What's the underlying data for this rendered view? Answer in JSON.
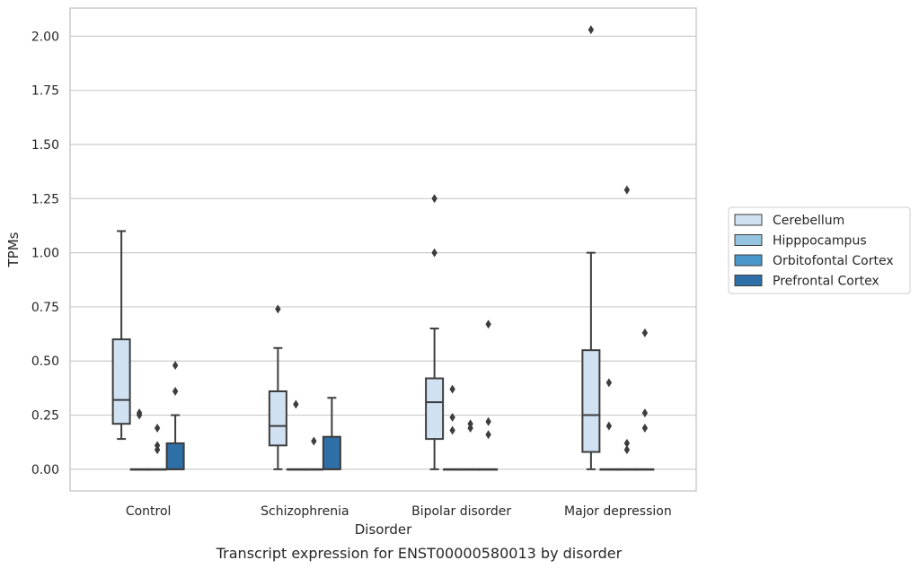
{
  "chart_data": {
    "type": "boxplot",
    "title": "",
    "caption": "Transcript expression for ENST00000580013 by disorder",
    "xlabel": "Disorder",
    "ylabel": "TPMs",
    "ylim": [
      -0.1,
      2.13
    ],
    "yticks": [
      "0.00",
      "0.25",
      "0.50",
      "0.75",
      "1.00",
      "1.25",
      "1.50",
      "1.75",
      "2.00"
    ],
    "grid": true,
    "legend_position": "right",
    "categories": [
      "Control",
      "Schizophrenia",
      "Bipolar disorder",
      "Major depression"
    ],
    "series": [
      {
        "name": "Cerebellum",
        "color": "#d0e1f2",
        "boxes": [
          {
            "whislo": 0.14,
            "q1": 0.21,
            "med": 0.32,
            "q3": 0.6,
            "whishi": 1.1,
            "fliers": []
          },
          {
            "whislo": 0.0,
            "q1": 0.11,
            "med": 0.2,
            "q3": 0.36,
            "whishi": 0.56,
            "fliers": [
              0.74
            ]
          },
          {
            "whislo": 0.0,
            "q1": 0.14,
            "med": 0.31,
            "q3": 0.42,
            "whishi": 0.65,
            "fliers": [
              1.0,
              1.25
            ]
          },
          {
            "whislo": 0.0,
            "q1": 0.08,
            "med": 0.25,
            "q3": 0.55,
            "whishi": 1.0,
            "fliers": [
              2.03
            ]
          }
        ]
      },
      {
        "name": "Hipppocampus",
        "color": "#94c4df",
        "boxes": [
          {
            "whislo": 0.0,
            "q1": 0.0,
            "med": 0.0,
            "q3": 0.0,
            "whishi": 0.0,
            "fliers": [
              0.25,
              0.26
            ]
          },
          {
            "whislo": 0.0,
            "q1": 0.0,
            "med": 0.0,
            "q3": 0.0,
            "whishi": 0.0,
            "fliers": [
              0.3
            ]
          },
          {
            "whislo": 0.0,
            "q1": 0.0,
            "med": 0.0,
            "q3": 0.0,
            "whishi": 0.0,
            "fliers": [
              0.18,
              0.24,
              0.37
            ]
          },
          {
            "whislo": 0.0,
            "q1": 0.0,
            "med": 0.0,
            "q3": 0.0,
            "whishi": 0.0,
            "fliers": [
              0.2,
              0.4
            ]
          }
        ]
      },
      {
        "name": "Orbitofontal Cortex",
        "color": "#4a98c9",
        "boxes": [
          {
            "whislo": 0.0,
            "q1": 0.0,
            "med": 0.0,
            "q3": 0.0,
            "whishi": 0.0,
            "fliers": [
              0.09,
              0.11,
              0.19
            ]
          },
          {
            "whislo": 0.0,
            "q1": 0.0,
            "med": 0.0,
            "q3": 0.0,
            "whishi": 0.0,
            "fliers": [
              0.13
            ]
          },
          {
            "whislo": 0.0,
            "q1": 0.0,
            "med": 0.0,
            "q3": 0.0,
            "whishi": 0.0,
            "fliers": [
              0.19,
              0.21
            ]
          },
          {
            "whislo": 0.0,
            "q1": 0.0,
            "med": 0.0,
            "q3": 0.0,
            "whishi": 0.0,
            "fliers": [
              0.09,
              0.12,
              1.29
            ]
          }
        ]
      },
      {
        "name": "Prefrontal Cortex",
        "color": "#2e6fa8",
        "boxes": [
          {
            "whislo": 0.0,
            "q1": 0.0,
            "med": 0.0,
            "q3": 0.12,
            "whishi": 0.25,
            "fliers": [
              0.36,
              0.48
            ]
          },
          {
            "whislo": 0.0,
            "q1": 0.0,
            "med": 0.0,
            "q3": 0.15,
            "whishi": 0.33,
            "fliers": []
          },
          {
            "whislo": 0.0,
            "q1": 0.0,
            "med": 0.0,
            "q3": 0.0,
            "whishi": 0.0,
            "fliers": [
              0.16,
              0.22,
              0.67
            ]
          },
          {
            "whislo": 0.0,
            "q1": 0.0,
            "med": 0.0,
            "q3": 0.0,
            "whishi": 0.0,
            "fliers": [
              0.19,
              0.26,
              0.63
            ]
          }
        ]
      }
    ]
  }
}
